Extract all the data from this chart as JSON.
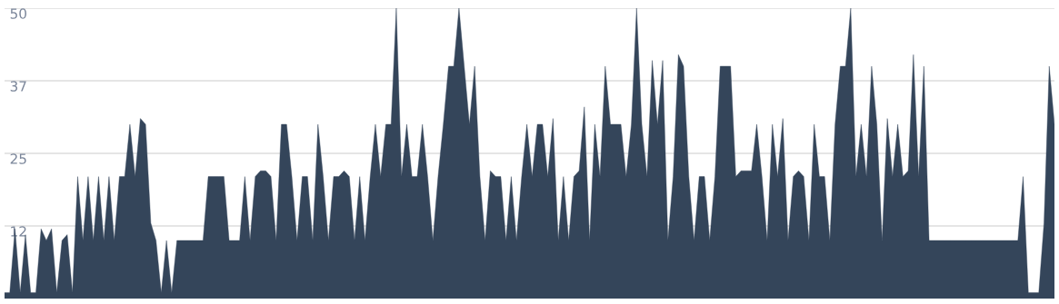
{
  "chart_data": {
    "type": "area",
    "values": [
      1,
      1,
      12,
      1,
      11,
      1,
      1,
      12,
      10,
      12,
      1,
      10,
      11,
      1,
      21,
      10,
      21,
      10,
      21,
      10,
      21,
      10,
      21,
      21,
      30,
      21,
      31,
      30,
      13,
      10,
      1,
      10,
      1,
      10,
      10,
      10,
      10,
      10,
      10,
      21,
      21,
      21,
      21,
      10,
      10,
      10,
      21,
      10,
      21,
      22,
      22,
      21,
      10,
      30,
      30,
      21,
      10,
      21,
      21,
      10,
      30,
      21,
      10,
      21,
      21,
      22,
      21,
      10,
      21,
      10,
      21,
      30,
      21,
      30,
      30,
      50,
      21,
      30,
      21,
      21,
      30,
      21,
      10,
      21,
      30,
      40,
      40,
      50,
      40,
      30,
      40,
      21,
      10,
      22,
      21,
      21,
      10,
      21,
      10,
      21,
      30,
      21,
      30,
      30,
      21,
      31,
      10,
      21,
      10,
      21,
      22,
      33,
      10,
      30,
      21,
      40,
      30,
      30,
      30,
      21,
      30,
      50,
      30,
      21,
      41,
      30,
      41,
      10,
      21,
      42,
      40,
      21,
      10,
      21,
      21,
      10,
      21,
      40,
      40,
      40,
      21,
      22,
      22,
      22,
      30,
      21,
      10,
      30,
      21,
      31,
      10,
      21,
      22,
      21,
      10,
      30,
      21,
      21,
      10,
      30,
      40,
      40,
      50,
      21,
      30,
      21,
      40,
      30,
      10,
      31,
      21,
      30,
      21,
      22,
      42,
      21,
      40,
      10,
      10,
      10,
      10,
      10,
      10,
      10,
      10,
      10,
      10,
      10,
      10,
      10,
      10,
      10,
      10,
      10,
      10,
      21,
      1,
      1,
      1,
      13,
      40,
      30
    ],
    "color": "#34455a",
    "ylim": [
      0,
      50
    ],
    "yticks": [
      {
        "value": 12.5,
        "label": "12"
      },
      25,
      {
        "value": 37.5,
        "label": "37"
      },
      50
    ],
    "grid": "y"
  }
}
